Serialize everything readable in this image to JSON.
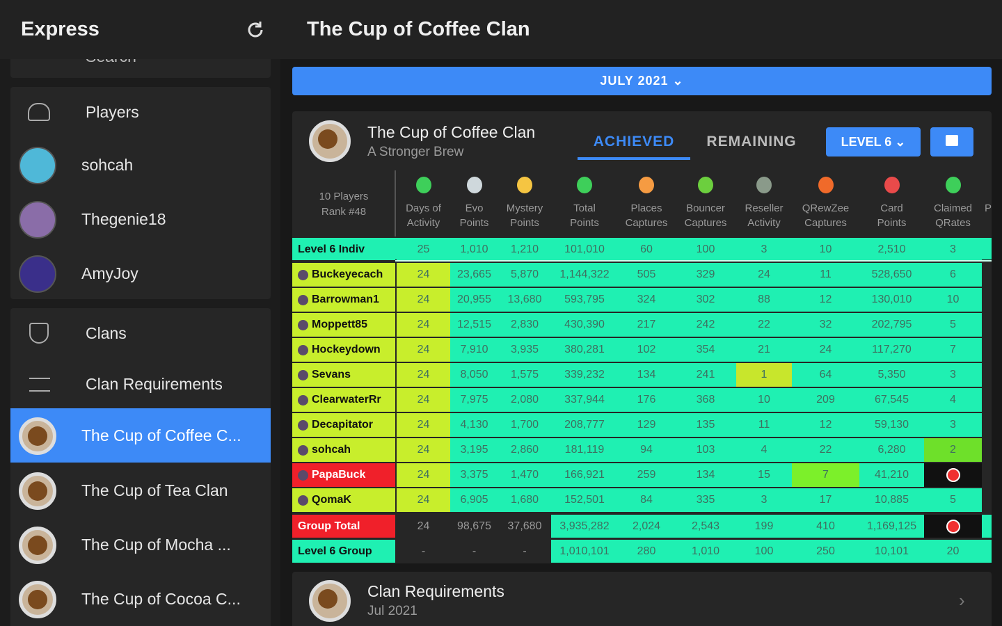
{
  "sidebar": {
    "app_title": "Express",
    "search": "Search",
    "section1": [
      "Players",
      "sohcah",
      "Thegenie18",
      "AmyJoy"
    ],
    "section2": [
      "Clans",
      "Clan Requirements",
      "The Cup of Coffee C...",
      "The Cup of Tea Clan",
      "The Cup of Mocha ...",
      "The Cup of Cocoa C..."
    ]
  },
  "header": {
    "title": "The Cup of Coffee Clan"
  },
  "month": "JULY 2021",
  "clan": {
    "name": "The Cup of Coffee Clan",
    "subtitle": "A Stronger Brew"
  },
  "tabs": [
    "ACHIEVED",
    "REMAINING"
  ],
  "level_button": "LEVEL 6",
  "table": {
    "players_count": "10 Players",
    "rank": "Rank #48",
    "columns": [
      [
        "Days of",
        "Activity"
      ],
      [
        "Evo",
        "Points"
      ],
      [
        "Mystery",
        "Points"
      ],
      [
        "Total",
        "Points"
      ],
      [
        "Places",
        "Captures"
      ],
      [
        "Bouncer",
        "Captures"
      ],
      [
        "Reseller",
        "Activity"
      ],
      [
        "QRewZee",
        "Captures"
      ],
      [
        "Card",
        "Points"
      ],
      [
        "Claimed",
        "QRates"
      ]
    ],
    "partial_column": "P",
    "rows": [
      {
        "name": "Level 6 Indiv",
        "cells": [
          "25",
          "1,010",
          "1,210",
          "101,010",
          "60",
          "100",
          "3",
          "10",
          "2,510",
          "3"
        ]
      },
      {
        "name": "Buckeyecach",
        "cells": [
          "24",
          "23,665",
          "5,870",
          "1,144,322",
          "505",
          "329",
          "24",
          "11",
          "528,650",
          "6"
        ]
      },
      {
        "name": "Barrowman1",
        "cells": [
          "24",
          "20,955",
          "13,680",
          "593,795",
          "324",
          "302",
          "88",
          "12",
          "130,010",
          "10"
        ]
      },
      {
        "name": "Moppett85",
        "cells": [
          "24",
          "12,515",
          "2,830",
          "430,390",
          "217",
          "242",
          "22",
          "32",
          "202,795",
          "5"
        ]
      },
      {
        "name": "Hockeydown",
        "cells": [
          "24",
          "7,910",
          "3,935",
          "380,281",
          "102",
          "354",
          "21",
          "24",
          "117,270",
          "7"
        ]
      },
      {
        "name": "Sevans",
        "cells": [
          "24",
          "8,050",
          "1,575",
          "339,232",
          "134",
          "241",
          "1",
          "64",
          "5,350",
          "3"
        ]
      },
      {
        "name": "ClearwaterRr",
        "cells": [
          "24",
          "7,975",
          "2,080",
          "337,944",
          "176",
          "368",
          "10",
          "209",
          "67,545",
          "4"
        ]
      },
      {
        "name": "Decapitator",
        "cells": [
          "24",
          "4,130",
          "1,700",
          "208,777",
          "129",
          "135",
          "11",
          "12",
          "59,130",
          "3"
        ]
      },
      {
        "name": "sohcah",
        "cells": [
          "24",
          "3,195",
          "2,860",
          "181,119",
          "94",
          "103",
          "4",
          "22",
          "6,280",
          "2"
        ]
      },
      {
        "name": "PapaBuck",
        "cells": [
          "24",
          "3,375",
          "1,470",
          "166,921",
          "259",
          "134",
          "15",
          "7",
          "41,210",
          null
        ]
      },
      {
        "name": "QomaK",
        "cells": [
          "24",
          "6,905",
          "1,680",
          "152,501",
          "84",
          "335",
          "3",
          "17",
          "10,885",
          "5"
        ]
      },
      {
        "name": "Group Total",
        "cells": [
          "24",
          "98,675",
          "37,680",
          "3,935,282",
          "2,024",
          "2,543",
          "199",
          "410",
          "1,169,125",
          null
        ]
      },
      {
        "name": "Level 6 Group",
        "cells": [
          "-",
          "-",
          "-",
          "1,010,101",
          "280",
          "1,010",
          "100",
          "250",
          "10,101",
          "20"
        ]
      }
    ]
  },
  "requirements": {
    "title": "Clan Requirements",
    "date": "Jul 2021"
  }
}
